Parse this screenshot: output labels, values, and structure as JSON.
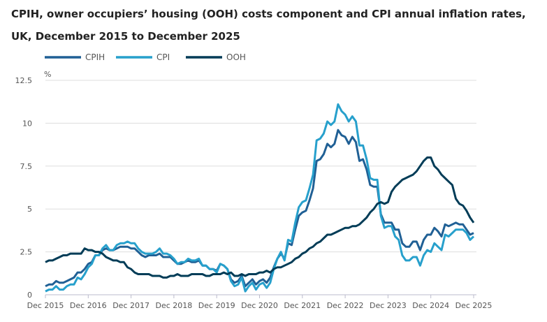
{
  "chart_data": {
    "type": "line",
    "title": "CPIH, owner occupiers’ housing (OOH) costs component and CPI annual inflation rates, UK, December 2015 to December 2025",
    "ylabel": "%",
    "xlabel": "",
    "ylim": [
      0,
      12.5
    ],
    "yticks": [
      "0",
      "2.5",
      "5",
      "7.5",
      "10",
      "12.5"
    ],
    "xticks": [
      "Dec 2015",
      "Dec 2016",
      "Dec 2017",
      "Dec 2018",
      "Dec 2019",
      "Dec 2020",
      "Dec 2021",
      "Dec 2022",
      "Dec 2023",
      "Dec 2024",
      "Dec 2025"
    ],
    "x_range": [
      "Dec 2015",
      "Dec 2025"
    ],
    "x_frequency": "monthly",
    "grid": "horizontal",
    "legend_position": "top-left",
    "series": [
      {
        "name": "CPIH",
        "color": "#206095",
        "values": [
          0.5,
          0.6,
          0.6,
          0.8,
          0.7,
          0.7,
          0.8,
          0.9,
          1.0,
          1.3,
          1.3,
          1.5,
          1.8,
          1.9,
          2.3,
          2.3,
          2.6,
          2.7,
          2.6,
          2.6,
          2.7,
          2.8,
          2.8,
          2.8,
          2.7,
          2.7,
          2.5,
          2.3,
          2.2,
          2.3,
          2.3,
          2.3,
          2.4,
          2.2,
          2.2,
          2.2,
          2.0,
          1.8,
          1.8,
          1.9,
          2.0,
          1.9,
          1.9,
          2.0,
          1.7,
          1.7,
          1.5,
          1.5,
          1.4,
          1.8,
          1.7,
          1.5,
          0.9,
          0.7,
          0.8,
          1.1,
          0.5,
          0.7,
          0.9,
          0.6,
          0.8,
          0.9,
          0.7,
          1.0,
          1.6,
          2.1,
          2.4,
          2.1,
          3.0,
          2.9,
          3.8,
          4.6,
          4.8,
          4.9,
          5.5,
          6.2,
          7.8,
          7.9,
          8.2,
          8.8,
          8.6,
          8.8,
          9.6,
          9.3,
          9.2,
          8.8,
          9.2,
          8.9,
          7.8,
          7.9,
          7.3,
          6.4,
          6.3,
          6.3,
          4.7,
          4.2,
          4.2,
          4.2,
          3.8,
          3.8,
          3.0,
          2.8,
          2.8,
          3.1,
          3.1,
          2.6,
          3.2,
          3.5,
          3.5,
          3.9,
          3.7,
          3.4,
          4.1,
          4.0,
          4.1,
          4.2,
          4.1,
          4.1,
          3.8,
          3.5,
          3.6
        ]
      },
      {
        "name": "CPI",
        "color": "#27a0cc",
        "values": [
          0.2,
          0.3,
          0.3,
          0.5,
          0.3,
          0.3,
          0.5,
          0.6,
          0.6,
          1.0,
          0.9,
          1.2,
          1.6,
          1.8,
          2.3,
          2.3,
          2.7,
          2.9,
          2.6,
          2.6,
          2.9,
          3.0,
          3.0,
          3.1,
          3.0,
          3.0,
          2.7,
          2.5,
          2.4,
          2.4,
          2.4,
          2.5,
          2.7,
          2.4,
          2.4,
          2.3,
          2.1,
          1.8,
          1.9,
          1.9,
          2.1,
          2.0,
          2.0,
          2.1,
          1.7,
          1.7,
          1.5,
          1.5,
          1.3,
          1.8,
          1.7,
          1.5,
          0.8,
          0.5,
          0.6,
          1.0,
          0.2,
          0.5,
          0.7,
          0.3,
          0.6,
          0.7,
          0.4,
          0.7,
          1.5,
          2.1,
          2.5,
          2.0,
          3.2,
          3.1,
          4.2,
          5.1,
          5.4,
          5.5,
          6.2,
          7.0,
          9.0,
          9.1,
          9.4,
          10.1,
          9.9,
          10.1,
          11.1,
          10.7,
          10.5,
          10.1,
          10.4,
          10.1,
          8.7,
          8.7,
          7.9,
          6.8,
          6.7,
          6.7,
          4.6,
          3.9,
          4.0,
          4.0,
          3.4,
          3.2,
          2.3,
          2.0,
          2.0,
          2.2,
          2.2,
          1.7,
          2.3,
          2.6,
          2.5,
          3.0,
          2.8,
          2.6,
          3.5,
          3.4,
          3.6,
          3.8,
          3.8,
          3.8,
          3.6,
          3.2,
          3.4
        ]
      },
      {
        "name": "OOH",
        "color": "#003c57",
        "values": [
          1.9,
          2.0,
          2.0,
          2.1,
          2.2,
          2.3,
          2.3,
          2.4,
          2.4,
          2.4,
          2.4,
          2.7,
          2.6,
          2.6,
          2.5,
          2.5,
          2.4,
          2.2,
          2.1,
          2.0,
          2.0,
          1.9,
          1.9,
          1.6,
          1.5,
          1.3,
          1.2,
          1.2,
          1.2,
          1.2,
          1.1,
          1.1,
          1.1,
          1.0,
          1.0,
          1.1,
          1.1,
          1.2,
          1.1,
          1.1,
          1.1,
          1.2,
          1.2,
          1.2,
          1.2,
          1.1,
          1.1,
          1.2,
          1.2,
          1.2,
          1.3,
          1.2,
          1.3,
          1.1,
          1.1,
          1.2,
          1.1,
          1.2,
          1.2,
          1.2,
          1.3,
          1.3,
          1.4,
          1.3,
          1.5,
          1.6,
          1.6,
          1.7,
          1.8,
          1.9,
          2.1,
          2.2,
          2.4,
          2.5,
          2.7,
          2.8,
          3.0,
          3.1,
          3.3,
          3.5,
          3.5,
          3.6,
          3.7,
          3.8,
          3.9,
          3.9,
          4.0,
          4.0,
          4.1,
          4.3,
          4.5,
          4.8,
          5.0,
          5.3,
          5.4,
          5.3,
          5.4,
          6.0,
          6.3,
          6.5,
          6.7,
          6.8,
          6.9,
          7.0,
          7.2,
          7.5,
          7.8,
          8.0,
          8.0,
          7.5,
          7.3,
          7.0,
          6.8,
          6.6,
          6.4,
          5.6,
          5.3,
          5.2,
          4.9,
          4.5,
          4.2
        ]
      }
    ]
  }
}
